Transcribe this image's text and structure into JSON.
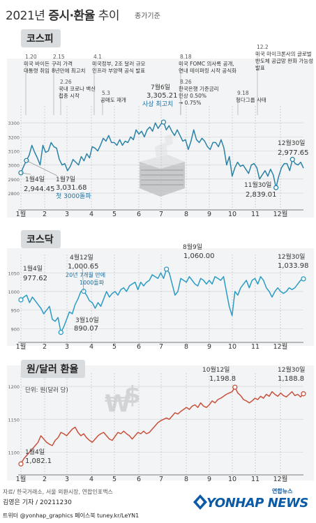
{
  "title": {
    "prefix": "2021년 ",
    "bold": "증시·환율",
    "suffix": " 추이"
  },
  "subtitle": "종가기준",
  "months": [
    "1월",
    "2",
    "3",
    "4",
    "5",
    "6",
    "7",
    "8",
    "9",
    "10",
    "11",
    "12월"
  ],
  "chart_data": [
    {
      "type": "line",
      "title": "코스피",
      "color": "#2a82a6",
      "ylim": [
        2750,
        3400
      ],
      "yticks": [
        2800,
        2900,
        3000,
        3100,
        3200,
        3300
      ],
      "series": [
        {
          "values": [
            2944.45,
            2990,
            3031.68,
            3070,
            3140,
            3090,
            3050,
            3000,
            3140,
            3090,
            3100,
            3160,
            3130,
            3120,
            3040,
            3000,
            3010,
            2960,
            2990,
            3040,
            3020,
            3000,
            3060,
            3030,
            3080,
            3050,
            3130,
            3120,
            3100,
            3140,
            3190,
            3170,
            3210,
            3160,
            3160,
            3140,
            3180,
            3140,
            3170,
            3160,
            3200,
            3180,
            3250,
            3220,
            3240,
            3200,
            3250,
            3270,
            3240,
            3300,
            3260,
            3290,
            3305.21,
            3250,
            3280,
            3240,
            3210,
            3250,
            3210,
            3170,
            3180,
            3110,
            3170,
            3250,
            3180,
            3160,
            3190,
            3170,
            3130,
            3110,
            3160,
            3160,
            3130,
            3180,
            3120,
            3000,
            3060,
            2920,
            2980,
            3020,
            2990,
            3000,
            2970,
            2940,
            3000,
            3010,
            2980,
            2900,
            2930,
            2960,
            2920,
            2970,
            2930,
            2839.01,
            2920,
            2980,
            3010,
            3010,
            2960,
            3040,
            3010,
            3000,
            3020,
            2977.65
          ]
        }
      ]
    },
    {
      "type": "line",
      "title": "코스닥",
      "color": "#2a9cc4",
      "ylim": [
        880,
        1090
      ],
      "yticks": [
        900,
        950,
        1000,
        1050
      ],
      "series": [
        {
          "values": [
            977.62,
            985,
            990,
            970,
            985,
            975,
            965,
            955,
            940,
            950,
            960,
            925,
            920,
            930,
            890.07,
            905,
            925,
            945,
            940,
            965,
            980,
            1000,
            1000.65,
            990,
            975,
            970,
            955,
            970,
            960,
            980,
            1000,
            985,
            995,
            1000,
            990,
            1005,
            1010,
            1000,
            1015,
            1020,
            1025,
            1005,
            1025,
            1015,
            1025,
            1030,
            1045,
            1040,
            1035,
            1050,
            1035,
            1060.0,
            1050,
            1020,
            990,
            1000,
            1035,
            1030,
            1025,
            1040,
            1030,
            1020,
            1015,
            1035,
            1030,
            1020,
            1030,
            1020,
            1040,
            1035,
            1030,
            1040,
            1000,
            960,
            935,
            1000,
            990,
            1010,
            1020,
            1030,
            1010,
            1030,
            1035,
            1020,
            1040,
            1030,
            1010,
            1000,
            985,
            1000,
            1010,
            1000,
            995,
            1000,
            1010,
            1005,
            1010,
            1020,
            1030,
            1033.98
          ]
        }
      ]
    },
    {
      "type": "line",
      "title": "원/달러 환율",
      "color": "#c8503c",
      "ylim": [
        1075,
        1215
      ],
      "yticks": [
        1100,
        1150,
        1200
      ],
      "ylabel": "단위: 원(달러 당)",
      "series": [
        {
          "values": [
            1082.1,
            1090,
            1095,
            1100,
            1105,
            1110,
            1115,
            1125,
            1120,
            1115,
            1112,
            1110,
            1118,
            1122,
            1130,
            1128,
            1125,
            1130,
            1135,
            1138,
            1130,
            1125,
            1128,
            1122,
            1118,
            1115,
            1120,
            1125,
            1128,
            1130,
            1125,
            1120,
            1118,
            1124,
            1130,
            1128,
            1132,
            1128,
            1125,
            1120,
            1125,
            1130,
            1128,
            1132,
            1128,
            1130,
            1135,
            1140,
            1145,
            1148,
            1150,
            1152,
            1150,
            1155,
            1160,
            1158,
            1162,
            1165,
            1168,
            1165,
            1170,
            1172,
            1168,
            1175,
            1170,
            1168,
            1172,
            1178,
            1175,
            1180,
            1182,
            1185,
            1188,
            1190,
            1192,
            1198.8,
            1190,
            1186,
            1180,
            1178,
            1175,
            1178,
            1182,
            1180,
            1185,
            1182,
            1188,
            1185,
            1192,
            1188,
            1185,
            1190,
            1186,
            1184,
            1188,
            1192,
            1186,
            1188,
            1184,
            1188.8
          ]
        }
      ]
    }
  ],
  "kospi": {
    "label": "코스피",
    "events": [
      {
        "date": "1.20",
        "text": "미국 바이든 대통령 취임"
      },
      {
        "date": "2.15",
        "text": "구리 가격 8년만에 최고치"
      },
      {
        "date": "2.26",
        "text": "국내 코로나 백신 접종 시작"
      },
      {
        "date": "4.1",
        "text": "미국정부, 2조 달러 규모 인프라 부양책 공식 발표"
      },
      {
        "date": "5.3",
        "text": "공매도 재개"
      },
      {
        "date": "8.18",
        "text": "미국 FOMC 의사록 공개, 연내 테이퍼링 시작 공식화"
      },
      {
        "date": "8.26",
        "text": "한국은행 기준금리 인상 0.50% → 0.75%"
      },
      {
        "date": "9.18",
        "text": "헝다그룹 사태"
      },
      {
        "date": "12.2",
        "text": "미국 마이크론사의 글로벌 반도체 공급망 완화 가능성 발표"
      }
    ],
    "ann": {
      "jan4_date": "1월4일",
      "jan4_value": "2,944.45",
      "jan7_date": "1월7일",
      "jan7_value": "3,031.68",
      "jan7_note": "첫 3000돌파",
      "jul6_date": "7월6일",
      "jul6_value": "3,305.21",
      "jul6_note": "사상 최고치",
      "nov30_date": "11월30일",
      "nov30_value": "2,839.01",
      "dec30_date": "12월30일",
      "dec30_value": "2,977.65"
    }
  },
  "kosdaq": {
    "label": "코스닥",
    "ann": {
      "jan4_date": "1월4일",
      "jan4_value": "977.62",
      "mar10_date": "3월10일",
      "mar10_value": "890.07",
      "apr12_date": "4월12일",
      "apr12_value": "1,000.65",
      "apr12_note1": "20년 7개월 만에",
      "apr12_note2": "1000돌파",
      "aug9_date": "8월9일",
      "aug9_value": "1,060.00",
      "dec30_date": "12월30일",
      "dec30_value": "1,033.98"
    }
  },
  "fx": {
    "label": "원/달러 환율",
    "unit": "단위: 원(달러 당)",
    "ann": {
      "jan4_date": "1월4일",
      "jan4_value": "1,082.1",
      "oct12_date": "10월12일",
      "oct12_value": "1,198.8",
      "dec30_date": "12월30일",
      "dec30_value": "1,188.8"
    }
  },
  "source": "자료/ 한국거래소, 서울 외환시장, 연합인포맥스",
  "credit": {
    "author": "김영은 기자 / 20211230",
    "social": "트위터 @yonhap_graphics  페이스북 tuney.kr/LeYN1"
  },
  "logo": {
    "small": "연합뉴스",
    "main": "YONHAP NEWS"
  }
}
